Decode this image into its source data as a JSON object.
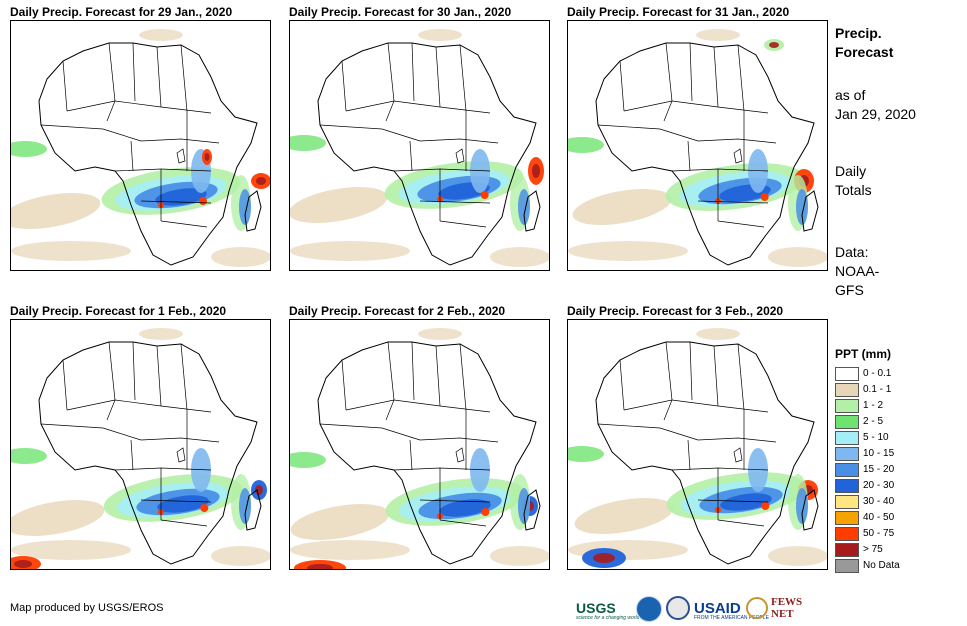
{
  "panels": [
    {
      "title": "Daily Precip. Forecast for 29 Jan., 2020"
    },
    {
      "title": "Daily Precip. Forecast for 30 Jan., 2020"
    },
    {
      "title": "Daily Precip. Forecast for 31 Jan., 2020"
    },
    {
      "title": "Daily Precip. Forecast for 1 Feb., 2020"
    },
    {
      "title": "Daily Precip. Forecast for 2 Feb., 2020"
    },
    {
      "title": "Daily Precip. Forecast for 3 Feb., 2020"
    }
  ],
  "side": {
    "title_line1": "Precip.",
    "title_line2": "Forecast",
    "asof_line1": "as of",
    "asof_line2": "Jan 29, 2020",
    "totals_line1": "Daily",
    "totals_line2": "Totals",
    "data_line1": "Data:",
    "data_line2": "NOAA-",
    "data_line3": "GFS"
  },
  "legend": {
    "title": "PPT (mm)",
    "items": [
      {
        "label": "0 - 0.1",
        "color": "#ffffff"
      },
      {
        "label": "0.1 - 1",
        "color": "#e8d6b8"
      },
      {
        "label": "1 - 2",
        "color": "#b3f0a6"
      },
      {
        "label": "2 - 5",
        "color": "#6fe36f"
      },
      {
        "label": "5 - 10",
        "color": "#a6eef5"
      },
      {
        "label": "10 - 15",
        "color": "#7fb8f0"
      },
      {
        "label": "15 - 20",
        "color": "#4a8fe6"
      },
      {
        "label": "20 - 30",
        "color": "#2163d9"
      },
      {
        "label": "30 - 40",
        "color": "#ffe680"
      },
      {
        "label": "40 - 50",
        "color": "#f5a300"
      },
      {
        "label": "50 - 75",
        "color": "#ff3d00"
      },
      {
        "label": "> 75",
        "color": "#a61c1c"
      },
      {
        "label": "No Data",
        "color": "#999999"
      }
    ]
  },
  "credit": "Map produced by USGS/EROS",
  "logos": {
    "usgs": "USGS",
    "usgs_tagline": "science for a changing world",
    "usaid": "USAID",
    "usaid_tagline": "FROM THE AMERICAN PEOPLE",
    "fews": "FEWS NET"
  }
}
